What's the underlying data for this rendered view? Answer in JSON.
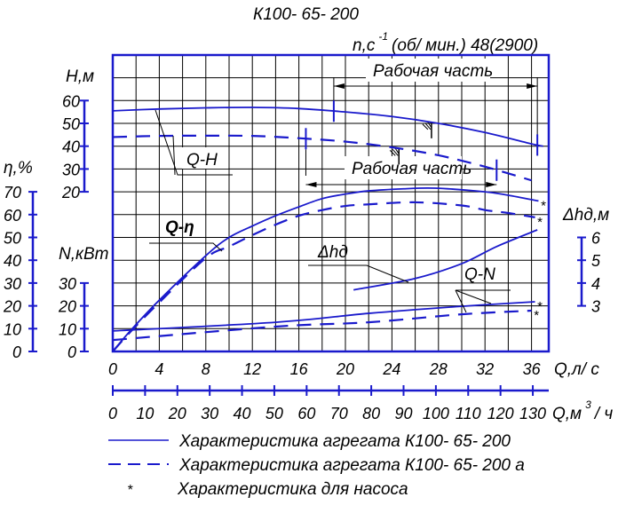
{
  "title": "К100- 65- 200",
  "speed": {
    "label": "n,с",
    "exp": "-1",
    "value": "(об/ мин.) 48(2900)"
  },
  "working_zone_label": "Рабочая часть",
  "colors": {
    "curve": "#1a1acc",
    "grid": "#000000"
  },
  "legend": [
    {
      "style": "solid",
      "label": "Характеристика агрегата К100- 65- 200"
    },
    {
      "style": "dashed",
      "label": "Характеристика агрегата К100- 65- 200 а"
    },
    {
      "style": "star",
      "symbol": "*",
      "label": "Характеристика для насоса"
    }
  ],
  "curve_labels": {
    "qh": "Q-H",
    "qeta": "Q-η",
    "dh": "Δhд",
    "qn": "Q-N"
  },
  "chart_data": {
    "type": "line",
    "title": "К100- 65- 200",
    "grid": true,
    "x_axes": [
      {
        "label": "Q,л/ с",
        "range": [
          0,
          37.5
        ],
        "ticks": [
          0,
          4,
          8,
          12,
          16,
          20,
          24,
          28,
          32,
          36
        ]
      },
      {
        "label": "Q,м",
        "label_sup": "3",
        "label_tail": "/ ч",
        "ticks": [
          0,
          10,
          20,
          30,
          40,
          50,
          60,
          70,
          80,
          90,
          100,
          110,
          120,
          130
        ]
      }
    ],
    "y_axes": {
      "H": {
        "label": "Н,м",
        "ticks": [
          60,
          50,
          40,
          30,
          20
        ]
      },
      "eta": {
        "label": "η,%",
        "ticks": [
          70,
          60,
          50,
          40,
          30,
          20,
          10,
          0
        ]
      },
      "N": {
        "label": "N,кВт",
        "ticks": [
          30,
          20,
          10,
          0
        ]
      },
      "dh": {
        "label": "Δhд,м",
        "ticks": [
          6,
          5,
          4,
          3
        ]
      }
    },
    "series": [
      {
        "curve": "Q-H",
        "axis": "H",
        "style": "solid",
        "x": [
          0,
          4,
          8,
          12,
          16,
          20,
          24,
          28,
          32,
          36,
          37
        ],
        "y": [
          55.5,
          56.3,
          56.8,
          57,
          56.5,
          55,
          53,
          50,
          46,
          41,
          40
        ]
      },
      {
        "curve": "Q-H",
        "axis": "H",
        "style": "dashed",
        "x": [
          0,
          4,
          8,
          12,
          16,
          20,
          24,
          28,
          32,
          36
        ],
        "y": [
          44,
          44.5,
          44.6,
          44.5,
          43.5,
          42,
          39.5,
          36,
          31,
          25
        ]
      },
      {
        "curve": "Q-η",
        "axis": "eta",
        "style": "solid",
        "x": [
          0,
          1.5,
          4,
          8,
          10,
          12,
          14,
          16,
          18,
          20,
          22,
          25,
          27.7,
          32,
          34,
          36.6
        ],
        "y": [
          0,
          9,
          22.5,
          42,
          50,
          55,
          59.5,
          63.4,
          67,
          69,
          70.4,
          71.3,
          71.6,
          70,
          68.5,
          66
        ],
        "end_star": true
      },
      {
        "curve": "Q-η",
        "axis": "eta",
        "style": "dashed",
        "x": [
          0,
          1.5,
          4,
          8,
          10,
          12,
          14,
          16,
          18,
          20,
          22,
          26,
          30,
          32,
          34,
          36.3
        ],
        "y": [
          0,
          8.5,
          21.5,
          41,
          46,
          51,
          55.6,
          59.5,
          62,
          63.8,
          64.5,
          65.4,
          64,
          62,
          60.7,
          58.8
        ],
        "end_star": true
      },
      {
        "curve": "Q-N",
        "axis": "N",
        "style": "solid",
        "x": [
          0,
          14,
          22,
          30,
          36.3
        ],
        "y": [
          9,
          12.8,
          16.7,
          19.8,
          21.8
        ],
        "end_star": true
      },
      {
        "curve": "Q-N",
        "axis": "N",
        "style": "dashed",
        "x": [
          0,
          14,
          22,
          30,
          36
        ],
        "y": [
          5,
          10.9,
          12.8,
          16.3,
          17.9
        ],
        "end_star": true
      },
      {
        "curve": "Δhд",
        "axis": "dh",
        "style": "solid",
        "x": [
          20.7,
          26,
          30,
          33,
          36.5
        ],
        "y": [
          3.7,
          4.2,
          4.85,
          5.6,
          6.33
        ]
      }
    ],
    "working_zones": [
      {
        "style": "solid",
        "q_range": [
          19,
          36.5
        ],
        "optimum_q": 27.4
      },
      {
        "style": "dashed",
        "q_range": [
          16.6,
          33
        ],
        "optimum_q": 24.6
      }
    ]
  }
}
